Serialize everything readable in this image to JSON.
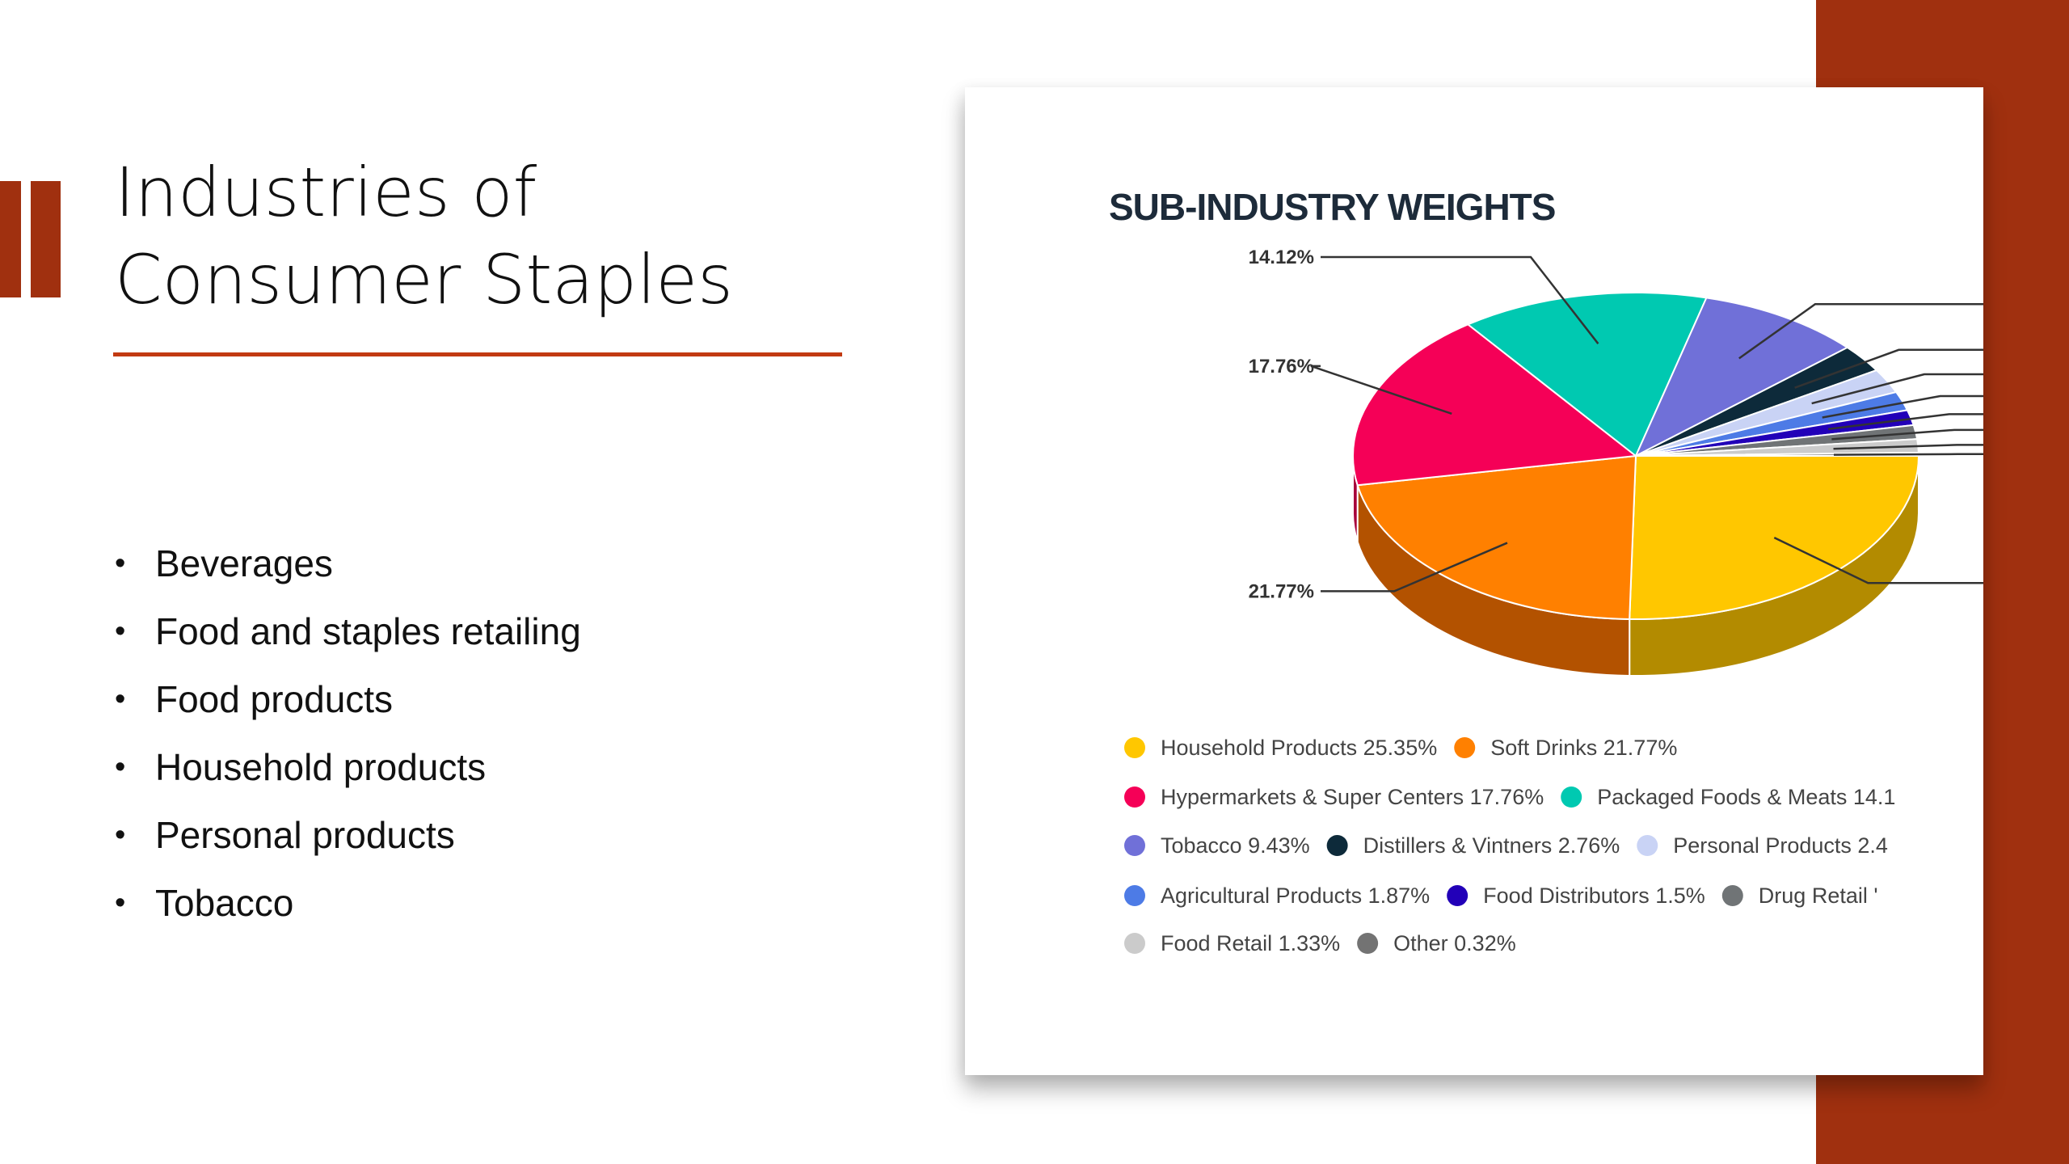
{
  "slide": {
    "title_line1": "Industries of",
    "title_line2": "Consumer Staples",
    "bullets": [
      "Beverages",
      "Food and staples retailing",
      "Food products",
      "Household products",
      "Personal products",
      "Tobacco"
    ]
  },
  "colors": {
    "accent": "#a0300f",
    "underline": "#c23a12"
  },
  "chart_data": {
    "type": "pie",
    "title": "SUB-INDUSTRY WEIGHTS",
    "slices": [
      {
        "name": "Household Products",
        "value": 25.35,
        "legend": "Household Products 25.35%",
        "color": "#ffc700",
        "side": "#b38b00"
      },
      {
        "name": "Soft Drinks",
        "value": 21.77,
        "legend": "Soft Drinks 21.77%",
        "label": "21.77%",
        "color": "#ff8000",
        "side": "#b35200"
      },
      {
        "name": "Hypermarkets & Super Centers",
        "value": 17.76,
        "legend": "Hypermarkets & Super Centers 17.76%",
        "label": "17.76%",
        "color": "#f50057",
        "side": "#a8003b"
      },
      {
        "name": "Packaged Foods & Meats",
        "value": 14.12,
        "legend": "Packaged Foods & Meats 14.1",
        "label": "14.12%",
        "color": "#00c9b1",
        "side": "#008878"
      },
      {
        "name": "Tobacco",
        "value": 9.43,
        "legend": "Tobacco 9.43%",
        "color": "#7070d8",
        "side": "#4b4b99"
      },
      {
        "name": "Distillers & Vintners",
        "value": 2.76,
        "legend": "Distillers & Vintners 2.76%",
        "color": "#0d2a3a",
        "side": "#061620"
      },
      {
        "name": "Personal Products",
        "value": 2.4,
        "legend": "Personal Products 2.4",
        "color": "#c9d3f5",
        "side": "#8e96b0"
      },
      {
        "name": "Agricultural Products",
        "value": 1.87,
        "legend": "Agricultural Products 1.87%",
        "color": "#4d7be6",
        "side": "#34559e"
      },
      {
        "name": "Food Distributors",
        "value": 1.5,
        "legend": "Food Distributors 1.5%",
        "color": "#2200b8",
        "side": "#16007a"
      },
      {
        "name": "Drug Retail",
        "value": 1.37,
        "legend": "Drug Retail '",
        "color": "#707476",
        "side": "#4a4d4f"
      },
      {
        "name": "Food Retail",
        "value": 1.33,
        "legend": "Food Retail 1.33%",
        "color": "#cbcbcb",
        "side": "#8d8d8d"
      },
      {
        "name": "Other",
        "value": 0.32,
        "legend": "Other 0.32%",
        "color": "#737373",
        "side": "#4d4d4d"
      }
    ],
    "legend_rows": [
      [
        0,
        1
      ],
      [
        2,
        3
      ],
      [
        4,
        5,
        6
      ],
      [
        7,
        8,
        9
      ],
      [
        10,
        11
      ]
    ],
    "legend_placement": "bottom"
  }
}
